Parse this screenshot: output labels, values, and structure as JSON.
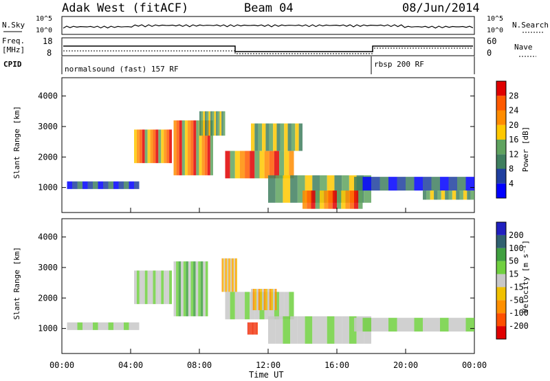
{
  "header": {
    "title": "Adak West (fitACF)",
    "beam": "Beam 04",
    "date": "08/Jun/2014"
  },
  "panels": {
    "nsky_label": "N.Sky",
    "nsearch_label": "N.Search",
    "log_tick_top": "10^5",
    "log_tick_bottom": "10^0",
    "freq_label_line1": "Freq.",
    "freq_label_line2": "[MHz]",
    "freq_ticks": [
      "18",
      "8"
    ],
    "nave_label": "Nave",
    "nave_ticks": [
      "60",
      "0"
    ],
    "cpid_label": "CPID",
    "cpid_segments": [
      {
        "label": "normalsound (fast) 157 RF",
        "start_hour": 0
      },
      {
        "label": "rbsp 200 RF",
        "start_hour": 18
      }
    ]
  },
  "colors": {
    "power_scale": [
      "#0000ff",
      "#1f3f9f",
      "#3f7f5f",
      "#5fa35f",
      "#ffc800",
      "#ff8c00",
      "#ff5a00",
      "#e00000"
    ],
    "velocity_scale": [
      "#e00000",
      "#ff5000",
      "#ff9000",
      "#f0c000",
      "#c8c8c8",
      "#70d040",
      "#40a040",
      "#306070",
      "#2020c0"
    ]
  },
  "chart_data": [
    {
      "type": "heatmap",
      "panel": "power",
      "ylabel": "Slant Range [km]",
      "colorbar_label": "Power [dB]",
      "colorbar_ticks": [
        "4",
        "8",
        "12",
        "16",
        "20",
        "24",
        "28"
      ],
      "yticks": [
        "1000",
        "2000",
        "3000",
        "4000"
      ],
      "ylim": [
        180,
        4600
      ],
      "xlim": [
        0,
        24
      ],
      "grid": false,
      "bands": [
        {
          "t": [
            0.3,
            4.5
          ],
          "r": [
            950,
            1200
          ],
          "level": "low"
        },
        {
          "t": [
            4.2,
            6.4
          ],
          "r": [
            1800,
            2900
          ],
          "level": "high"
        },
        {
          "t": [
            6.5,
            8.8
          ],
          "r": [
            1400,
            3200
          ],
          "level": "high"
        },
        {
          "t": [
            8.0,
            9.5
          ],
          "r": [
            2700,
            3500
          ],
          "level": "mid"
        },
        {
          "t": [
            9.5,
            13.5
          ],
          "r": [
            1300,
            2200
          ],
          "level": "high"
        },
        {
          "t": [
            11.0,
            14.0
          ],
          "r": [
            2200,
            3100
          ],
          "level": "mid"
        },
        {
          "t": [
            12.0,
            18.0
          ],
          "r": [
            500,
            1400
          ],
          "level": "mid"
        },
        {
          "t": [
            14.0,
            17.5
          ],
          "r": [
            300,
            900
          ],
          "level": "high"
        },
        {
          "t": [
            17.0,
            24.0
          ],
          "r": [
            900,
            1350
          ],
          "level": "low"
        },
        {
          "t": [
            21.0,
            24.0
          ],
          "r": [
            600,
            900
          ],
          "level": "mid"
        }
      ]
    },
    {
      "type": "heatmap",
      "panel": "velocity",
      "ylabel": "Slant Range [km]",
      "colorbar_label": "Velocity [m s⁻¹]",
      "colorbar_ticks": [
        "-200",
        "-100",
        "-50",
        "-15",
        "15",
        "50",
        "100",
        "200"
      ],
      "yticks": [
        "1000",
        "2000",
        "3000",
        "4000"
      ],
      "xticks": [
        "00:00",
        "04:00",
        "08:00",
        "12:00",
        "16:00",
        "20:00",
        "00:00"
      ],
      "xlabel": "Time UT",
      "ylim": [
        180,
        4600
      ],
      "xlim": [
        0,
        24
      ],
      "grid": false,
      "bands": [
        {
          "t": [
            0.3,
            4.5
          ],
          "r": [
            950,
            1200
          ],
          "level": "grey"
        },
        {
          "t": [
            4.2,
            6.4
          ],
          "r": [
            1800,
            2900
          ],
          "level": "grey"
        },
        {
          "t": [
            6.5,
            8.5
          ],
          "r": [
            1400,
            3200
          ],
          "level": "green"
        },
        {
          "t": [
            9.3,
            10.2
          ],
          "r": [
            2200,
            3300
          ],
          "level": "orange"
        },
        {
          "t": [
            9.5,
            13.5
          ],
          "r": [
            1300,
            2200
          ],
          "level": "grey"
        },
        {
          "t": [
            11.0,
            12.5
          ],
          "r": [
            1600,
            2300
          ],
          "level": "orange"
        },
        {
          "t": [
            12.0,
            18.0
          ],
          "r": [
            500,
            1400
          ],
          "level": "grey"
        },
        {
          "t": [
            17.0,
            24.0
          ],
          "r": [
            900,
            1350
          ],
          "level": "grey"
        },
        {
          "t": [
            10.8,
            11.4
          ],
          "r": [
            800,
            1200
          ],
          "level": "red"
        }
      ]
    }
  ]
}
